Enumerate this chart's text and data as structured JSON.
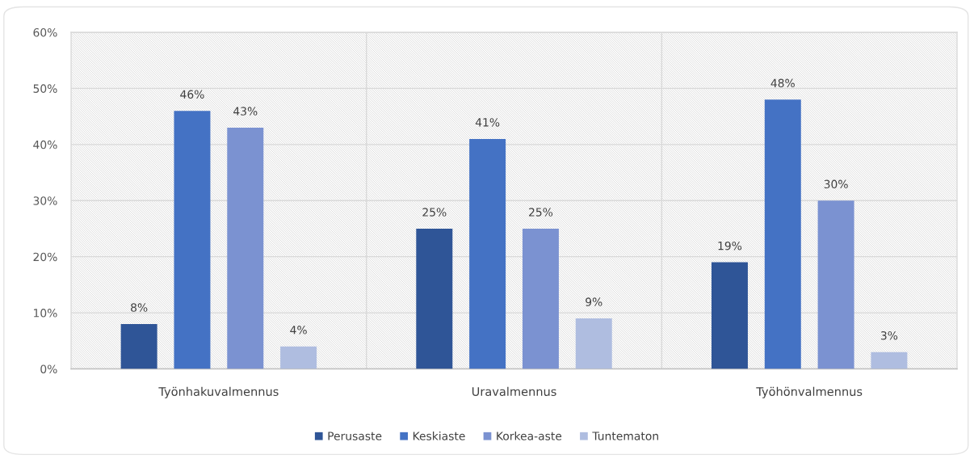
{
  "chart_data": {
    "type": "bar",
    "categories": [
      "Työnhakuvalmennus",
      "Uravalmennus",
      "Työhönvalmennus"
    ],
    "series": [
      {
        "name": "Perusaste",
        "color": "#2f5597",
        "values": [
          8,
          25,
          19
        ],
        "value_labels": [
          "8%",
          "25%",
          "19%"
        ]
      },
      {
        "name": "Keskiaste",
        "color": "#4472c4",
        "values": [
          46,
          41,
          48
        ],
        "value_labels": [
          "46%",
          "41%",
          "48%"
        ]
      },
      {
        "name": "Korkea-aste",
        "color": "#7b92d1",
        "values": [
          43,
          25,
          30
        ],
        "value_labels": [
          "43%",
          "25%",
          "30%"
        ]
      },
      {
        "name": "Tuntematon",
        "color": "#afbde0",
        "values": [
          4,
          9,
          3
        ],
        "value_labels": [
          "4%",
          "9%",
          "3%"
        ]
      }
    ],
    "ylim": [
      0,
      60
    ],
    "yticks": [
      {
        "value": 0,
        "label": "0%"
      },
      {
        "value": 10,
        "label": "10%"
      },
      {
        "value": 20,
        "label": "20%"
      },
      {
        "value": 30,
        "label": "30%"
      },
      {
        "value": 40,
        "label": "40%"
      },
      {
        "value": 50,
        "label": "50%"
      },
      {
        "value": 60,
        "label": "60%"
      }
    ],
    "grid": true,
    "legend": "bottom"
  }
}
